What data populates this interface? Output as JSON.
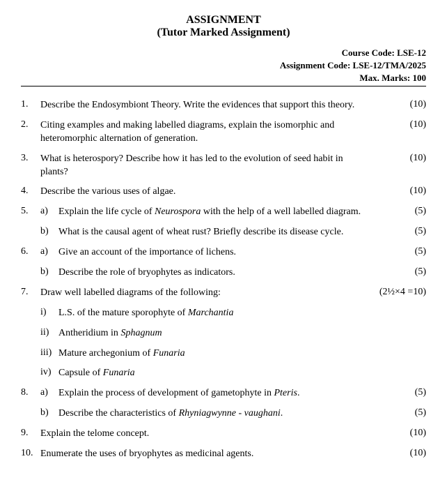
{
  "header": {
    "line1": "ASSIGNMENT",
    "line2": "(Tutor Marked Assignment)"
  },
  "meta": {
    "course_code_label": "Course Code: LSE-12",
    "assignment_code_label": "Assignment Code: LSE-12/TMA/2025",
    "max_marks_label": "Max. Marks: 100"
  },
  "questions": [
    {
      "num": "1.",
      "text": "Describe the Endosymbiont Theory.  Write the evidences that support this theory.",
      "marks": "(10)"
    },
    {
      "num": "2.",
      "text": "Citing examples and making labelled diagrams, explain the isomorphic and heteromorphic alternation of generation.",
      "marks": "(10)"
    },
    {
      "num": "3.",
      "text": "What is heterospory?  Describe how it has led to the evolution of seed habit in plants?",
      "marks": "(10)"
    },
    {
      "num": "4.",
      "text": "Describe the various uses of algae.",
      "marks": "(10)"
    },
    {
      "num": "5.",
      "parts": [
        {
          "sub": "a)",
          "html": "Explain the life cycle of <span class='italic'>Neurospora</span> with the help of a well labelled diagram.",
          "marks": "(5)"
        },
        {
          "sub": "b)",
          "html": "What is the causal agent of wheat rust? Briefly describe its disease cycle.",
          "marks": "(5)"
        }
      ]
    },
    {
      "num": "6.",
      "parts": [
        {
          "sub": "a)",
          "html": "Give an account of the importance of lichens.",
          "marks": "(5)"
        },
        {
          "sub": "b)",
          "html": "Describe the role of bryophytes as indicators.",
          "marks": "(5)"
        }
      ]
    },
    {
      "num": "7.",
      "text": "Draw well labelled diagrams of the following:",
      "marks": "(2½×4 =10)",
      "items": [
        {
          "sub": "i)",
          "html": "L.S. of the mature sporophyte of <span class='italic'>Marchantia</span>"
        },
        {
          "sub": "ii)",
          "html": "Antheridium in <span class='italic'>Sphagnum</span>"
        },
        {
          "sub": "iii)",
          "html": "Mature archegonium of <span class='italic'>Funaria</span>"
        },
        {
          "sub": "iv)",
          "html": "Capsule of <span class='italic'>Funaria</span>"
        }
      ]
    },
    {
      "num": "8.",
      "parts": [
        {
          "sub": "a)",
          "html": "Explain the process of development of gametophyte in <span class='italic'>Pteris</span>.",
          "marks": "(5)"
        },
        {
          "sub": "b)",
          "html": "Describe the characteristics of <span class='italic'>Rhyniagwynne - vaughani</span>.",
          "marks": "(5)"
        }
      ]
    },
    {
      "num": "9.",
      "text": "Explain the telome concept.",
      "marks": "(10)"
    },
    {
      "num": "10.",
      "text": "Enumerate the uses of bryophytes as medicinal agents.",
      "marks": "(10)"
    }
  ]
}
